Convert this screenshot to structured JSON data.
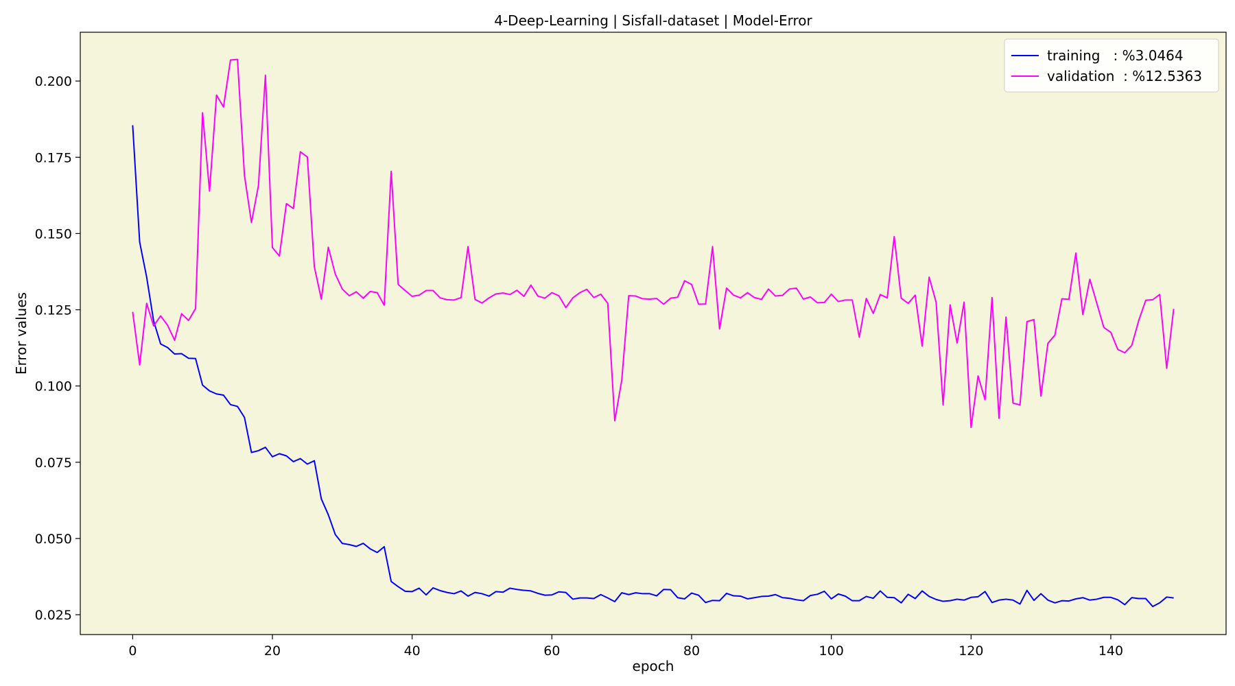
{
  "chart_data": {
    "type": "line",
    "title": "4-Deep-Learning | Sisfall-dataset  | Model-Error",
    "xlabel": "epoch",
    "ylabel": "Error values",
    "xlim": [
      -7.5,
      156.5
    ],
    "ylim": [
      0.0185,
      0.216
    ],
    "xticks": [
      0,
      20,
      40,
      60,
      80,
      100,
      120,
      140
    ],
    "yticks": [
      0.025,
      0.05,
      0.075,
      0.1,
      0.125,
      0.15,
      0.175,
      0.2
    ],
    "ytick_labels": [
      "0.025",
      "0.050",
      "0.075",
      "0.100",
      "0.125",
      "0.150",
      "0.175",
      "0.200"
    ],
    "background": "#f5f5dc",
    "grid": false,
    "legend": "top-right",
    "series": [
      {
        "name": "training   : %3.0464",
        "color": "#0000ff",
        "values": [
          0.1855,
          0.1472,
          0.1357,
          0.1213,
          0.1138,
          0.1126,
          0.1105,
          0.1106,
          0.1091,
          0.109,
          0.1003,
          0.0984,
          0.0974,
          0.097,
          0.0939,
          0.0933,
          0.0897,
          0.0782,
          0.0788,
          0.0799,
          0.0768,
          0.0778,
          0.0771,
          0.0752,
          0.0762,
          0.0744,
          0.0755,
          0.063,
          0.0578,
          0.0513,
          0.0484,
          0.048,
          0.0474,
          0.0484,
          0.0466,
          0.0454,
          0.0473,
          0.0359,
          0.0342,
          0.0327,
          0.0326,
          0.0337,
          0.0315,
          0.0338,
          0.0329,
          0.0323,
          0.0319,
          0.0328,
          0.0311,
          0.0323,
          0.0319,
          0.0311,
          0.0326,
          0.0324,
          0.0337,
          0.0333,
          0.033,
          0.0328,
          0.032,
          0.0314,
          0.0315,
          0.0325,
          0.0323,
          0.0301,
          0.0305,
          0.0305,
          0.0303,
          0.0316,
          0.0305,
          0.0293,
          0.0322,
          0.0316,
          0.0322,
          0.0319,
          0.0319,
          0.0312,
          0.0333,
          0.0332,
          0.0306,
          0.0302,
          0.0321,
          0.0314,
          0.029,
          0.0297,
          0.0296,
          0.032,
          0.0312,
          0.0311,
          0.0302,
          0.0306,
          0.031,
          0.0311,
          0.0316,
          0.0306,
          0.0304,
          0.0299,
          0.0296,
          0.0313,
          0.0317,
          0.0327,
          0.0302,
          0.0318,
          0.0311,
          0.0296,
          0.0296,
          0.031,
          0.0304,
          0.0328,
          0.0307,
          0.0306,
          0.0289,
          0.0317,
          0.0303,
          0.0328,
          0.031,
          0.03,
          0.0294,
          0.0296,
          0.0301,
          0.0298,
          0.0307,
          0.0309,
          0.0326,
          0.029,
          0.0298,
          0.0301,
          0.0298,
          0.0285,
          0.033,
          0.0297,
          0.0319,
          0.0298,
          0.0289,
          0.0296,
          0.0295,
          0.0302,
          0.0306,
          0.0298,
          0.0301,
          0.0307,
          0.0307,
          0.0299,
          0.0283,
          0.0306,
          0.0303,
          0.0303,
          0.0277,
          0.0289,
          0.0308,
          0.0305
        ]
      },
      {
        "name": "validation  : %12.5363",
        "color": "#ff00ff",
        "values": [
          0.1243,
          0.1069,
          0.1271,
          0.1197,
          0.123,
          0.1199,
          0.115,
          0.1237,
          0.1215,
          0.1254,
          0.1896,
          0.1639,
          0.1954,
          0.1915,
          0.2069,
          0.2071,
          0.169,
          0.1536,
          0.1657,
          0.2019,
          0.1454,
          0.1426,
          0.1598,
          0.1582,
          0.1768,
          0.1751,
          0.1391,
          0.1285,
          0.1455,
          0.1367,
          0.1318,
          0.1296,
          0.1309,
          0.1288,
          0.131,
          0.1306,
          0.1265,
          0.1704,
          0.1333,
          0.1313,
          0.1294,
          0.1298,
          0.1313,
          0.1313,
          0.1289,
          0.1283,
          0.1282,
          0.129,
          0.1457,
          0.1284,
          0.1272,
          0.1289,
          0.1302,
          0.1305,
          0.13,
          0.1314,
          0.1294,
          0.1331,
          0.1295,
          0.1288,
          0.1306,
          0.1296,
          0.1257,
          0.1289,
          0.1306,
          0.1317,
          0.129,
          0.1301,
          0.1271,
          0.0886,
          0.1019,
          0.1296,
          0.1295,
          0.1286,
          0.1285,
          0.1287,
          0.1268,
          0.1288,
          0.1291,
          0.1345,
          0.1333,
          0.1268,
          0.1269,
          0.1457,
          0.1187,
          0.1321,
          0.1298,
          0.1289,
          0.1306,
          0.129,
          0.1284,
          0.1318,
          0.1295,
          0.1297,
          0.1318,
          0.1321,
          0.1285,
          0.1292,
          0.1273,
          0.1274,
          0.1301,
          0.1277,
          0.1282,
          0.1282,
          0.116,
          0.1287,
          0.1238,
          0.13,
          0.1289,
          0.149,
          0.1288,
          0.1271,
          0.1298,
          0.1131,
          0.1357,
          0.1274,
          0.0938,
          0.1266,
          0.1141,
          0.1275,
          0.0864,
          0.1033,
          0.0955,
          0.129,
          0.0894,
          0.1226,
          0.0944,
          0.0938,
          0.1211,
          0.1218,
          0.0967,
          0.114,
          0.1167,
          0.1286,
          0.1284,
          0.1436,
          0.1234,
          0.135,
          0.1271,
          0.1192,
          0.1176,
          0.112,
          0.1109,
          0.1133,
          0.1215,
          0.1281,
          0.1283,
          0.13,
          0.1058,
          0.1253
        ]
      }
    ]
  }
}
